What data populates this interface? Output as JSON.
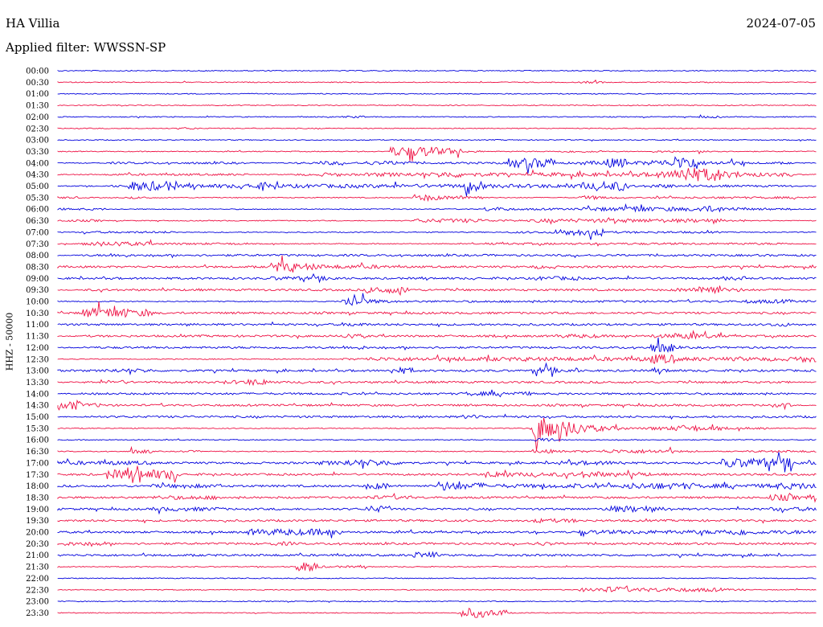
{
  "header": {
    "station": "HA Villia",
    "date": "2024-07-05",
    "filter": "Applied filter: WWSSN-SP"
  },
  "colors": {
    "blue": "#0000dd",
    "red": "#ee1144"
  },
  "chart_data": {
    "type": "line",
    "title": "HA Villia",
    "ylabel": "HHZ - 50000",
    "row_labels": [
      "00:00",
      "00:30",
      "01:00",
      "01:30",
      "02:00",
      "02:30",
      "03:00",
      "03:30",
      "04:00",
      "04:30",
      "05:00",
      "05:30",
      "06:00",
      "06:30",
      "07:00",
      "07:30",
      "08:00",
      "08:30",
      "09:00",
      "09:30",
      "10:00",
      "10:30",
      "11:00",
      "11:30",
      "12:00",
      "12:30",
      "13:00",
      "13:30",
      "14:00",
      "14:30",
      "15:00",
      "15:30",
      "16:00",
      "16:30",
      "17:00",
      "17:30",
      "18:00",
      "18:30",
      "19:00",
      "19:30",
      "20:00",
      "20:30",
      "21:00",
      "21:30",
      "22:00",
      "22:30",
      "23:00",
      "23:30"
    ],
    "row_colors": [
      "blue",
      "red"
    ],
    "activity": [
      [
        1,
        1,
        1,
        1,
        1,
        1,
        1,
        1,
        1,
        1,
        1,
        1,
        1,
        1,
        1,
        1,
        1,
        1,
        1,
        1,
        1,
        1,
        1,
        1,
        1,
        1,
        1,
        1,
        1,
        1,
        1,
        1
      ],
      [
        1,
        1,
        1,
        1,
        1,
        1,
        1,
        1,
        1,
        1,
        1,
        1,
        1,
        1,
        1,
        1,
        1,
        1,
        1,
        1,
        1,
        1,
        2,
        1,
        1,
        1,
        1,
        1,
        1,
        1,
        1,
        1
      ],
      [
        1,
        1,
        1,
        1,
        1,
        1,
        1,
        1,
        1,
        1,
        1,
        1,
        1,
        1,
        1,
        1,
        1,
        1,
        1,
        1,
        1,
        1,
        1,
        1,
        1,
        1,
        1,
        1,
        1,
        1,
        1,
        1
      ],
      [
        1,
        1,
        1,
        1,
        1,
        1,
        1,
        1,
        1,
        1,
        1,
        1,
        1,
        1,
        1,
        1,
        1,
        1,
        1,
        1,
        1,
        1,
        1,
        1,
        1,
        1,
        1,
        1,
        1,
        1,
        1,
        1
      ],
      [
        1,
        1,
        1,
        1,
        1,
        1,
        1,
        1,
        1,
        1,
        1,
        1,
        2,
        1,
        1,
        1,
        1,
        1,
        1,
        1,
        1,
        1,
        1,
        1,
        1,
        1,
        1,
        2,
        1,
        1,
        1,
        1
      ],
      [
        1,
        1,
        1,
        1,
        1,
        2,
        1,
        1,
        1,
        1,
        1,
        1,
        1,
        1,
        1,
        1,
        1,
        1,
        1,
        1,
        1,
        1,
        1,
        1,
        1,
        1,
        1,
        1,
        1,
        1,
        1,
        1
      ],
      [
        1,
        1,
        1,
        1,
        1,
        1,
        1,
        1,
        1,
        1,
        1,
        1,
        1,
        1,
        1,
        1,
        1,
        1,
        1,
        1,
        1,
        1,
        1,
        1,
        1,
        1,
        1,
        1,
        1,
        1,
        1,
        1
      ],
      [
        1,
        1,
        1,
        1,
        1,
        1,
        1,
        1,
        1,
        1,
        1,
        1,
        1,
        1,
        5,
        5,
        4,
        2,
        1,
        1,
        1,
        2,
        2,
        1,
        1,
        2,
        1,
        2,
        1,
        1,
        1,
        1
      ],
      [
        1,
        1,
        2,
        2,
        2,
        2,
        2,
        2,
        1,
        1,
        2,
        3,
        2,
        3,
        3,
        2,
        2,
        2,
        2,
        5,
        5,
        2,
        3,
        5,
        3,
        4,
        6,
        3,
        3,
        2,
        2,
        1
      ],
      [
        1,
        1,
        2,
        2,
        2,
        2,
        2,
        2,
        1,
        1,
        2,
        3,
        2,
        3,
        3,
        3,
        4,
        3,
        3,
        2,
        3,
        3,
        3,
        3,
        3,
        4,
        6,
        6,
        4,
        3,
        3,
        1
      ],
      [
        1,
        1,
        2,
        5,
        5,
        3,
        3,
        3,
        4,
        3,
        3,
        3,
        3,
        3,
        3,
        3,
        3,
        5,
        3,
        3,
        3,
        3,
        4,
        5,
        2,
        3,
        2,
        2,
        2,
        2,
        2,
        1
      ],
      [
        2,
        1,
        1,
        2,
        1,
        1,
        1,
        1,
        1,
        1,
        1,
        1,
        1,
        1,
        1,
        4,
        3,
        3,
        1,
        1,
        1,
        1,
        3,
        2,
        1,
        2,
        2,
        2,
        2,
        2,
        2,
        2
      ],
      [
        2,
        2,
        1,
        1,
        1,
        1,
        1,
        1,
        1,
        1,
        1,
        1,
        1,
        1,
        1,
        1,
        1,
        1,
        3,
        2,
        2,
        2,
        3,
        3,
        4,
        3,
        3,
        4,
        3,
        2,
        2,
        1
      ],
      [
        2,
        2,
        1,
        1,
        1,
        1,
        1,
        1,
        1,
        1,
        1,
        1,
        1,
        1,
        1,
        3,
        3,
        3,
        2,
        2,
        3,
        3,
        3,
        3,
        3,
        3,
        3,
        3,
        2,
        1,
        1,
        1
      ],
      [
        1,
        2,
        2,
        2,
        2,
        1,
        1,
        1,
        1,
        1,
        1,
        1,
        1,
        1,
        1,
        1,
        1,
        1,
        1,
        2,
        2,
        4,
        4,
        2,
        2,
        2,
        2,
        2,
        1,
        1,
        1,
        1
      ],
      [
        1,
        3,
        3,
        3,
        2,
        2,
        2,
        2,
        1,
        1,
        1,
        1,
        1,
        1,
        1,
        1,
        1,
        1,
        2,
        2,
        2,
        2,
        2,
        2,
        2,
        2,
        2,
        2,
        2,
        2,
        2,
        1
      ],
      [
        1,
        2,
        3,
        2,
        2,
        2,
        2,
        2,
        2,
        2,
        2,
        2,
        2,
        2,
        2,
        2,
        2,
        2,
        2,
        2,
        2,
        2,
        2,
        2,
        2,
        2,
        2,
        2,
        2,
        2,
        2,
        2
      ],
      [
        2,
        2,
        2,
        2,
        2,
        2,
        2,
        2,
        2,
        5,
        4,
        3,
        3,
        3,
        2,
        2,
        2,
        2,
        2,
        2,
        3,
        2,
        2,
        2,
        2,
        2,
        2,
        2,
        2,
        2,
        2,
        2
      ],
      [
        2,
        2,
        2,
        2,
        2,
        2,
        2,
        2,
        2,
        3,
        3,
        3,
        2,
        2,
        2,
        2,
        2,
        2,
        2,
        2,
        3,
        3,
        2,
        2,
        2,
        2,
        2,
        2,
        3,
        2,
        2,
        2
      ],
      [
        1,
        2,
        2,
        2,
        2,
        2,
        2,
        2,
        2,
        2,
        2,
        2,
        2,
        4,
        4,
        2,
        2,
        2,
        2,
        2,
        2,
        2,
        2,
        2,
        2,
        2,
        3,
        5,
        3,
        2,
        2,
        1
      ],
      [
        1,
        1,
        1,
        1,
        1,
        1,
        1,
        1,
        1,
        1,
        1,
        1,
        5,
        3,
        2,
        2,
        2,
        2,
        2,
        2,
        2,
        2,
        2,
        2,
        2,
        2,
        2,
        2,
        2,
        3,
        3,
        2
      ],
      [
        2,
        5,
        5,
        4,
        2,
        2,
        2,
        2,
        2,
        2,
        2,
        2,
        2,
        2,
        2,
        2,
        2,
        2,
        2,
        2,
        2,
        2,
        2,
        2,
        2,
        2,
        2,
        2,
        2,
        2,
        2,
        2
      ],
      [
        2,
        2,
        2,
        2,
        2,
        2,
        2,
        2,
        2,
        2,
        2,
        2,
        3,
        2,
        2,
        2,
        2,
        2,
        2,
        2,
        2,
        2,
        2,
        2,
        2,
        2,
        2,
        2,
        2,
        2,
        3,
        2
      ],
      [
        1,
        2,
        2,
        2,
        2,
        2,
        2,
        2,
        2,
        2,
        2,
        2,
        3,
        2,
        2,
        2,
        2,
        2,
        2,
        2,
        2,
        3,
        3,
        2,
        2,
        3,
        4,
        3,
        2,
        2,
        2,
        2
      ],
      [
        1,
        2,
        2,
        2,
        2,
        2,
        2,
        2,
        2,
        2,
        2,
        2,
        3,
        2,
        2,
        2,
        2,
        2,
        2,
        2,
        2,
        2,
        2,
        2,
        2,
        5,
        2,
        2,
        2,
        2,
        2,
        1
      ],
      [
        1,
        1,
        1,
        1,
        1,
        1,
        1,
        1,
        1,
        1,
        1,
        1,
        2,
        3,
        3,
        3,
        3,
        3,
        3,
        3,
        3,
        3,
        3,
        3,
        3,
        5,
        3,
        3,
        3,
        3,
        3,
        4
      ],
      [
        2,
        2,
        3,
        3,
        2,
        2,
        2,
        2,
        2,
        2,
        2,
        2,
        2,
        2,
        4,
        2,
        2,
        2,
        2,
        2,
        4,
        3,
        2,
        2,
        2,
        3,
        2,
        2,
        2,
        2,
        2,
        2
      ],
      [
        1,
        2,
        3,
        2,
        2,
        2,
        2,
        3,
        4,
        2,
        2,
        2,
        2,
        2,
        2,
        2,
        2,
        2,
        2,
        2,
        2,
        2,
        2,
        2,
        2,
        2,
        2,
        2,
        2,
        2,
        2,
        1
      ],
      [
        1,
        2,
        2,
        2,
        2,
        2,
        2,
        2,
        2,
        2,
        2,
        2,
        2,
        2,
        2,
        2,
        2,
        3,
        3,
        3,
        2,
        2,
        2,
        2,
        2,
        2,
        2,
        2,
        2,
        2,
        2,
        1
      ],
      [
        5,
        3,
        2,
        2,
        2,
        2,
        2,
        2,
        2,
        2,
        2,
        2,
        2,
        2,
        2,
        2,
        2,
        2,
        2,
        2,
        2,
        2,
        2,
        2,
        2,
        2,
        2,
        2,
        2,
        2,
        3,
        1
      ],
      [
        1,
        2,
        2,
        2,
        2,
        2,
        2,
        2,
        2,
        2,
        2,
        2,
        2,
        2,
        2,
        2,
        2,
        3,
        2,
        2,
        2,
        2,
        2,
        2,
        2,
        2,
        2,
        2,
        2,
        2,
        2,
        2
      ],
      [
        1,
        1,
        1,
        1,
        1,
        1,
        1,
        1,
        1,
        1,
        1,
        1,
        1,
        1,
        1,
        1,
        1,
        1,
        1,
        1,
        8,
        6,
        4,
        3,
        2,
        3,
        4,
        3,
        2,
        2,
        1,
        1
      ],
      [
        1,
        1,
        1,
        1,
        1,
        1,
        1,
        1,
        1,
        1,
        1,
        1,
        1,
        1,
        1,
        1,
        1,
        1,
        1,
        1,
        3,
        1,
        1,
        1,
        1,
        1,
        1,
        1,
        1,
        1,
        1,
        1
      ],
      [
        1,
        1,
        1,
        3,
        1,
        2,
        1,
        1,
        1,
        1,
        1,
        1,
        1,
        1,
        1,
        1,
        1,
        1,
        1,
        1,
        3,
        2,
        2,
        3,
        3,
        3,
        2,
        1,
        1,
        2,
        2,
        2
      ],
      [
        3,
        3,
        3,
        3,
        2,
        2,
        2,
        2,
        2,
        2,
        2,
        3,
        4,
        4,
        3,
        2,
        2,
        2,
        2,
        2,
        2,
        3,
        3,
        3,
        2,
        2,
        2,
        2,
        5,
        5,
        5,
        3
      ],
      [
        2,
        2,
        5,
        5,
        5,
        2,
        2,
        2,
        2,
        2,
        2,
        2,
        2,
        2,
        2,
        2,
        2,
        2,
        4,
        3,
        3,
        3,
        4,
        3,
        3,
        2,
        2,
        2,
        2,
        2,
        2,
        2
      ],
      [
        2,
        2,
        2,
        2,
        3,
        3,
        3,
        2,
        2,
        2,
        2,
        2,
        2,
        4,
        2,
        2,
        5,
        4,
        3,
        3,
        3,
        3,
        3,
        3,
        4,
        4,
        4,
        3,
        3,
        3,
        4,
        4
      ],
      [
        2,
        2,
        2,
        2,
        3,
        3,
        3,
        2,
        2,
        2,
        2,
        2,
        2,
        3,
        3,
        2,
        2,
        2,
        2,
        2,
        2,
        2,
        2,
        2,
        2,
        2,
        2,
        2,
        2,
        2,
        4,
        3
      ],
      [
        2,
        2,
        2,
        2,
        3,
        3,
        3,
        2,
        2,
        2,
        2,
        2,
        2,
        4,
        2,
        2,
        2,
        2,
        2,
        2,
        2,
        2,
        2,
        4,
        4,
        3,
        2,
        2,
        2,
        2,
        3,
        3
      ],
      [
        2,
        2,
        2,
        2,
        2,
        2,
        2,
        2,
        2,
        2,
        2,
        2,
        2,
        2,
        2,
        2,
        2,
        2,
        2,
        2,
        3,
        3,
        2,
        2,
        2,
        2,
        2,
        2,
        2,
        2,
        2,
        2
      ],
      [
        2,
        2,
        2,
        2,
        2,
        2,
        2,
        2,
        4,
        4,
        4,
        4,
        2,
        2,
        2,
        2,
        2,
        2,
        2,
        2,
        2,
        2,
        3,
        3,
        3,
        3,
        3,
        3,
        4,
        3,
        3,
        3
      ],
      [
        3,
        3,
        2,
        2,
        2,
        2,
        2,
        2,
        2,
        3,
        2,
        2,
        2,
        2,
        2,
        2,
        2,
        2,
        2,
        2,
        3,
        2,
        2,
        2,
        2,
        2,
        2,
        2,
        2,
        2,
        2,
        2
      ],
      [
        2,
        2,
        2,
        2,
        2,
        2,
        2,
        2,
        2,
        2,
        2,
        2,
        2,
        2,
        2,
        4,
        2,
        2,
        2,
        2,
        2,
        2,
        2,
        2,
        2,
        2,
        2,
        2,
        2,
        2,
        2,
        1
      ],
      [
        1,
        1,
        1,
        1,
        1,
        1,
        1,
        1,
        1,
        1,
        5,
        2,
        2,
        1,
        1,
        1,
        1,
        1,
        1,
        1,
        1,
        1,
        1,
        1,
        1,
        1,
        1,
        1,
        1,
        1,
        1,
        1
      ],
      [
        1,
        1,
        1,
        1,
        1,
        1,
        1,
        1,
        1,
        1,
        1,
        1,
        1,
        1,
        1,
        1,
        1,
        1,
        1,
        1,
        1,
        1,
        1,
        1,
        1,
        1,
        1,
        1,
        1,
        1,
        1,
        1
      ],
      [
        1,
        1,
        1,
        1,
        1,
        1,
        1,
        1,
        1,
        1,
        1,
        1,
        1,
        1,
        1,
        1,
        1,
        1,
        1,
        1,
        1,
        1,
        3,
        4,
        3,
        3,
        3,
        3,
        2,
        1,
        1,
        1
      ],
      [
        1,
        1,
        1,
        1,
        1,
        1,
        1,
        1,
        1,
        1,
        1,
        1,
        1,
        1,
        1,
        1,
        1,
        1,
        1,
        1,
        1,
        1,
        1,
        1,
        1,
        1,
        1,
        1,
        1,
        1,
        1,
        1
      ],
      [
        1,
        1,
        1,
        1,
        1,
        1,
        1,
        1,
        1,
        1,
        1,
        1,
        1,
        1,
        1,
        1,
        1,
        5,
        4,
        1,
        1,
        1,
        1,
        1,
        1,
        1,
        1,
        1,
        1,
        1,
        1,
        1
      ]
    ]
  }
}
